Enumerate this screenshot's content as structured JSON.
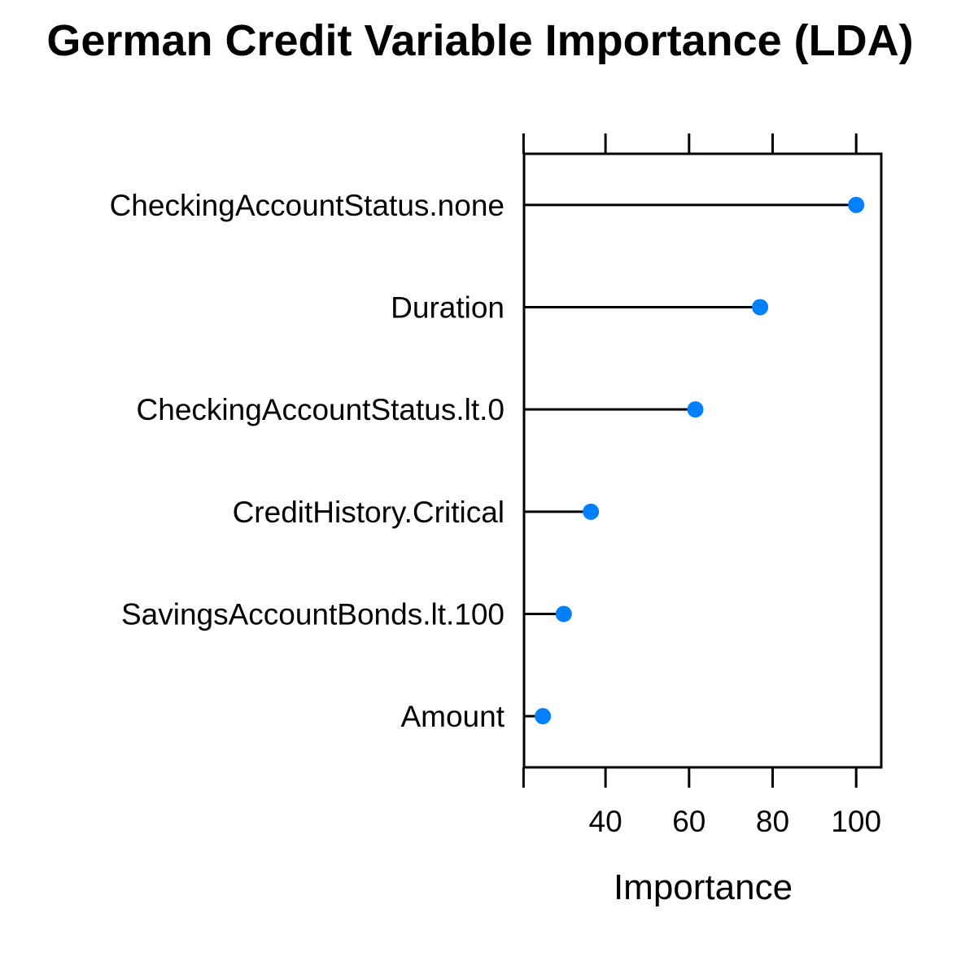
{
  "chart_data": {
    "type": "dotplot",
    "title": "German Credit Variable Importance (LDA)",
    "xlabel": "Importance",
    "ylabel": "",
    "xlim": [
      20.5,
      106
    ],
    "xticks": [
      40,
      60,
      80,
      100
    ],
    "xtick_labels": [
      "40",
      "60",
      "80",
      "100"
    ],
    "categories": [
      "CheckingAccountStatus.none",
      "Duration",
      "CheckingAccountStatus.lt.0",
      "CreditHistory.Critical",
      "SavingsAccountBonds.lt.100",
      "Amount"
    ],
    "values": [
      100,
      77,
      61.5,
      36.5,
      30,
      25
    ],
    "grid": false,
    "legend": "none",
    "colors": {
      "point": "#0080ff",
      "line": "#000000",
      "axis": "#000000"
    }
  }
}
